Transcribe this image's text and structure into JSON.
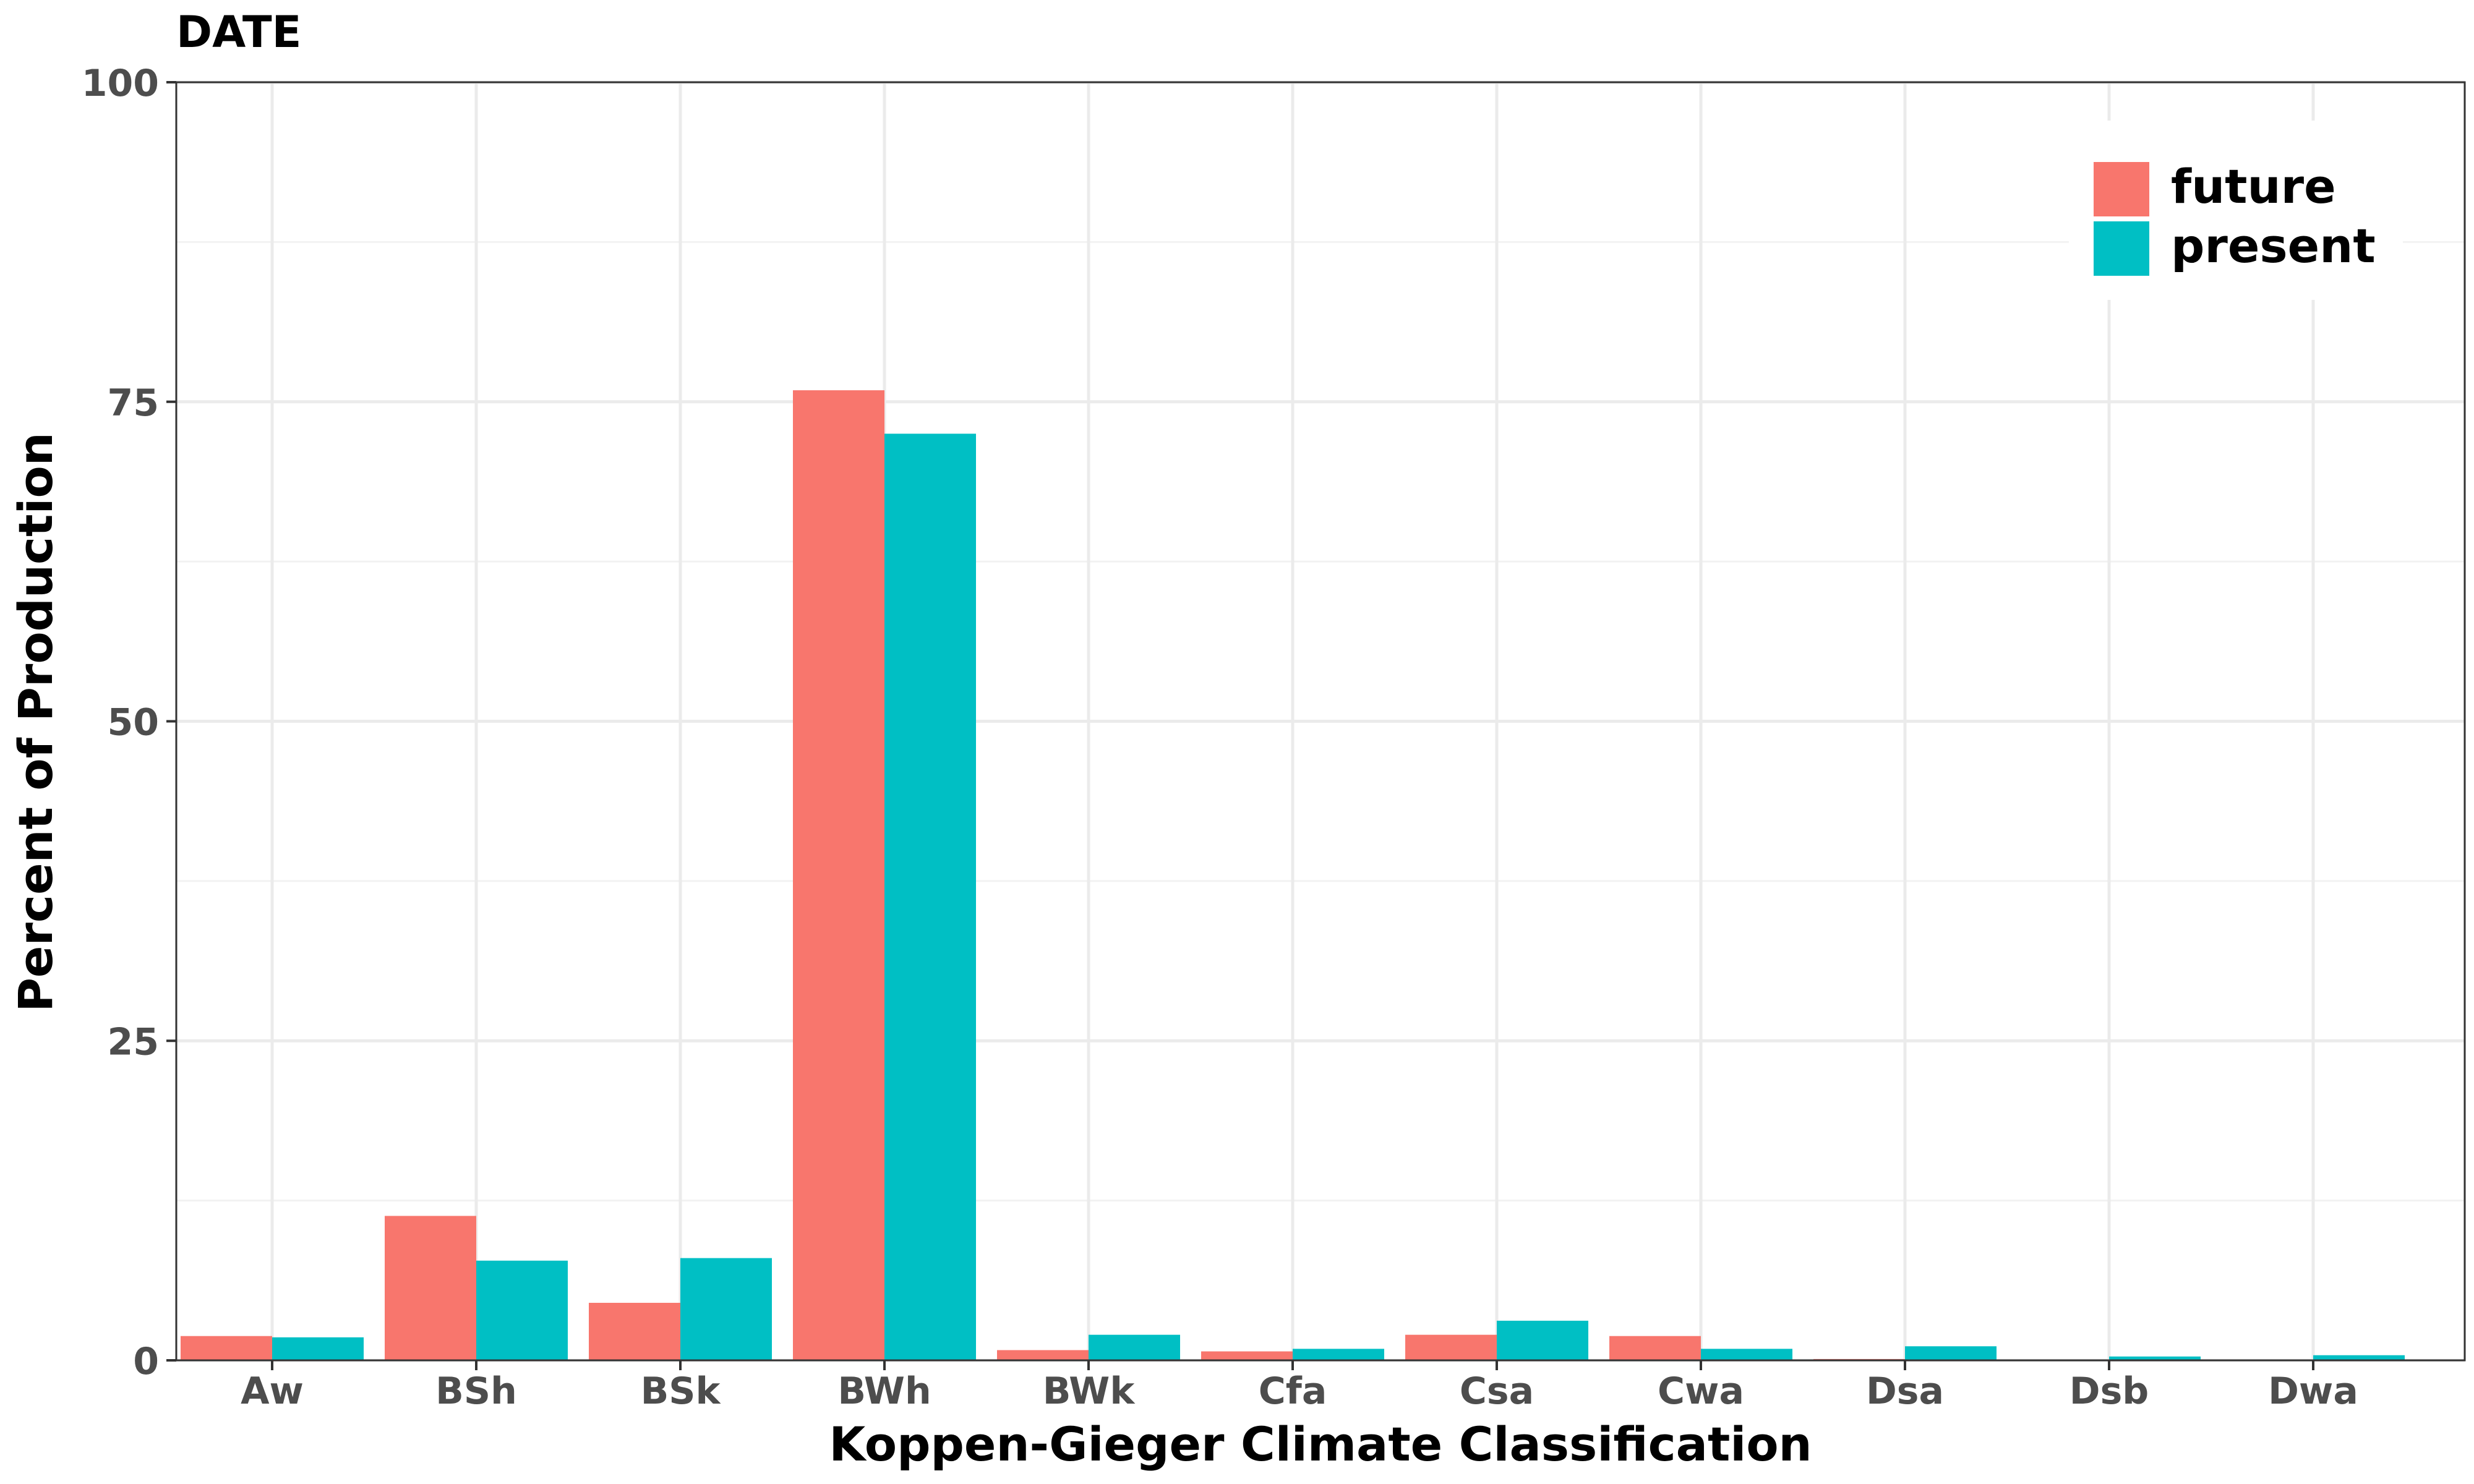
{
  "chart_data": {
    "type": "bar",
    "title": "DATE",
    "xlabel": "Koppen-Gieger Climate Classification",
    "ylabel": "Percent of Production",
    "categories": [
      "Aw",
      "BSh",
      "BSk",
      "BWh",
      "BWk",
      "Cfa",
      "Csa",
      "Cwa",
      "Dsa",
      "Dsb",
      "Dwa"
    ],
    "series": [
      {
        "name": "future",
        "color": "#F8766D",
        "values": [
          1.9,
          11.3,
          4.5,
          75.9,
          0.8,
          0.7,
          2.0,
          1.9,
          0.1,
          0.0,
          0.0
        ]
      },
      {
        "name": "present",
        "color": "#00BFC4",
        "values": [
          1.8,
          7.8,
          8.0,
          72.5,
          2.0,
          0.9,
          3.1,
          0.9,
          1.1,
          0.3,
          0.4
        ]
      }
    ],
    "ylim": [
      0,
      100
    ],
    "yticks": [
      0,
      25,
      50,
      75,
      100
    ],
    "grid": true,
    "legend_position": "top-right"
  }
}
